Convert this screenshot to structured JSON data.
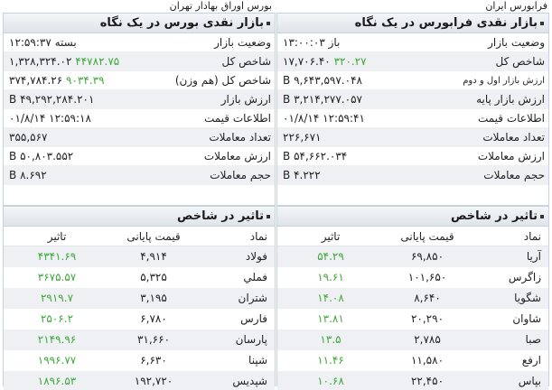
{
  "farabourse": {
    "top_title": "فرابورس ایران",
    "market_panel": {
      "title": "بازار نقدی فرابورس در یک نگاه",
      "rows": [
        {
          "label": "وضعیت بازار",
          "value": "باز ۱۳:۰۰:۰۳",
          "positive": false
        },
        {
          "label": "شاخص کل",
          "value": "۳۲۰.۲۷  ۱۷,۷۰۶.۴۰",
          "positive": false
        },
        {
          "label": "ارزش بازار اول و دوم",
          "value": "۹,۶۴۳,۵۹۷.۰۴۸ B",
          "positive": false
        },
        {
          "label": "ارزش بازار پایه",
          "value": "۳,۲۱۴,۲۷۷.۰۵۷ B",
          "positive": false
        },
        {
          "label": "اطلاعات قیمت",
          "value": "۱۲:۵۹:۴۱ ۰۱/۸/۱۴",
          "positive": false
        },
        {
          "label": "تعداد معاملات",
          "value": "۲۲۶,۶۷۱",
          "positive": false
        },
        {
          "label": "ارزش معاملات",
          "value": "۵۴,۶۶۲.۰۳۴ B",
          "positive": false
        },
        {
          "label": "حجم معاملات",
          "value": "۴.۲۲۲ B",
          "positive": false
        }
      ]
    },
    "impact_panel": {
      "title": "تاثیر در شاخص",
      "headers": {
        "symbol": "نماد",
        "price": "قیمت پایانی",
        "effect": "تاثیر"
      },
      "rows": [
        {
          "symbol": "آریا",
          "price": "۶۹,۸۵۰",
          "effect": "۵۴.۲۹"
        },
        {
          "symbol": "زاگرس",
          "price": "۱۰۱,۶۵۰",
          "effect": "۱۹.۶۱"
        },
        {
          "symbol": "شگویا",
          "price": "۸,۶۴۰",
          "effect": "۱۴.۰۸"
        },
        {
          "symbol": "شاوان",
          "price": "۲۰,۲۹۰",
          "effect": "۱۳.۸۱"
        },
        {
          "symbol": "صبا",
          "price": "۲,۷۸۵",
          "effect": "۱۳.۵"
        },
        {
          "symbol": "ارفع",
          "price": "۱۱,۵۸۰",
          "effect": "۱۱.۴۶"
        },
        {
          "symbol": "بپاس",
          "price": "۲۲,۴۵۰",
          "effect": "۱۰.۶۸"
        }
      ]
    }
  },
  "tse": {
    "top_title": "بورس اوراق بهادار تهران",
    "market_panel": {
      "title": "بازار نقدی بورس در یک نگاه",
      "rows": [
        {
          "label": "وضعیت بازار",
          "value": "بسته ۱۲:۵۹:۳۷",
          "positive": false
        },
        {
          "label": "شاخص کل",
          "value": "۱,۳۲۸,۳۲۴.۰۲  ۴۴۷۸۲.۷۵",
          "positive": false
        },
        {
          "label": "شاخص کل (هم وزن)",
          "value": "۳۷۴,۷۸۴.۲۶  ۹۰۳۴.۳۹",
          "positive": false
        },
        {
          "label": "ارزش بازار",
          "value": "۴۹,۲۹۲,۲۸۴.۲۰۱ B",
          "positive": false
        },
        {
          "label": "اطلاعات قیمت",
          "value": "۱۲:۵۹:۱۸ ۰۱/۸/۱۴",
          "positive": false
        },
        {
          "label": "تعداد معاملات",
          "value": "۳۵۵,۵۶۷",
          "positive": false
        },
        {
          "label": "ارزش معاملات",
          "value": "۵۰,۸۰۳.۵۵۲ B",
          "positive": false
        },
        {
          "label": "حجم معاملات",
          "value": "۸.۶۹۲ B",
          "positive": false
        }
      ]
    },
    "impact_panel": {
      "title": "تاثیر در شاخص",
      "headers": {
        "symbol": "نماد",
        "price": "قیمت پایانی",
        "effect": "تاثیر"
      },
      "rows": [
        {
          "symbol": "فولاد",
          "price": "۴,۹۱۴",
          "effect": "۴۳۴۱.۶۹"
        },
        {
          "symbol": "فملي",
          "price": "۵,۳۲۵",
          "effect": "۳۶۷۵.۵۷"
        },
        {
          "symbol": "شتران",
          "price": "۳,۱۹۵",
          "effect": "۲۹۱۹.۷"
        },
        {
          "symbol": "فارس",
          "price": "۶,۷۸۰",
          "effect": "۲۵۰۶.۲"
        },
        {
          "symbol": "پارسان",
          "price": "۳۱,۶۶۰",
          "effect": "۲۱۴۹.۹۶"
        },
        {
          "symbol": "شپنا",
          "price": "۶,۶۳۰",
          "effect": "۱۹۹۶.۷۷"
        },
        {
          "symbol": "شپديس",
          "price": "۱۹۲,۷۲۰",
          "effect": "۱۸۹۶.۵۳"
        }
      ]
    }
  },
  "colors": {
    "positive": "#3fa83a",
    "header_bg": "#dfe4ea",
    "stripe": "#eef0f3"
  }
}
